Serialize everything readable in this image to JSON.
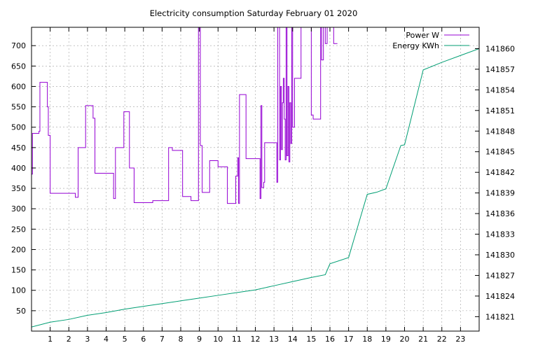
{
  "chart_data": {
    "type": "line",
    "title": "Electricity consumption Saturday February 01 2020",
    "xlabel": "",
    "ylabel": "",
    "y2label": "",
    "grid": true,
    "legend_position": "top-right",
    "xlim": [
      0,
      24
    ],
    "ylim": [
      0,
      745
    ],
    "y2lim": [
      141818.9,
      141863.1
    ],
    "x_ticks": [
      1,
      2,
      3,
      4,
      5,
      6,
      7,
      8,
      9,
      10,
      11,
      12,
      13,
      14,
      15,
      16,
      17,
      18,
      19,
      20,
      21,
      22,
      23
    ],
    "y_ticks": [
      50,
      100,
      150,
      200,
      250,
      300,
      350,
      400,
      450,
      500,
      550,
      600,
      650,
      700
    ],
    "y2_ticks": [
      141821,
      141824,
      141827,
      141830,
      141833,
      141836,
      141839,
      141842,
      141845,
      141848,
      141851,
      141854,
      141857,
      141860
    ],
    "series": [
      {
        "name": "Power W",
        "axis": "left",
        "color": "#9400d3",
        "step": true,
        "x": [
          0,
          0.05,
          0.1,
          0.4,
          0.45,
          0.5,
          0.85,
          0.9,
          0.95,
          1.0,
          1.5,
          2.35,
          2.4,
          2.5,
          2.9,
          3.0,
          3.3,
          3.4,
          4.05,
          4.1,
          4.25,
          4.3,
          4.4,
          4.5,
          4.95,
          5.15,
          5.25,
          5.5,
          6.5,
          6.9,
          7.35,
          7.4,
          7.55,
          7.6,
          8.1,
          8.45,
          8.5,
          8.55,
          8.95,
          9.05,
          9.15,
          9.55,
          10.0,
          10.5,
          10.55,
          10.95,
          11.0,
          11.05,
          11.1,
          11.15,
          11.5,
          12.15,
          12.25,
          12.3,
          12.35,
          12.45,
          12.5,
          12.6,
          12.7,
          13.15,
          13.2,
          13.3,
          13.35,
          13.4,
          13.45,
          13.5,
          13.55,
          13.6,
          13.65,
          13.7,
          13.75,
          13.8,
          13.85,
          13.9,
          13.95,
          14.0,
          14.1,
          14.35,
          14.45,
          15.0,
          15.1,
          15.5,
          15.55,
          15.65,
          15.75,
          15.85,
          16.2,
          16.35
        ],
        "values": [
          385,
          485,
          485,
          490,
          610,
          610,
          550,
          480,
          480,
          338,
          338,
          328,
          328,
          450,
          553,
          553,
          522,
          387,
          387,
          387,
          387,
          387,
          325,
          450,
          538,
          538,
          400,
          315,
          320,
          320,
          450,
          450,
          443,
          443,
          330,
          330,
          330,
          320,
          745,
          455,
          340,
          418,
          403,
          313,
          313,
          380,
          380,
          425,
          313,
          580,
          423,
          423,
          325,
          553,
          352,
          365,
          462,
          462,
          462,
          365,
          745,
          420,
          600,
          445,
          560,
          620,
          520,
          420,
          745,
          430,
          600,
          415,
          560,
          460,
          745,
          500,
          620,
          620,
          745,
          530,
          520,
          745,
          665,
          745,
          705,
          745,
          705,
          705
        ]
      },
      {
        "name": "Energy KWh",
        "axis": "right",
        "color": "#009e73",
        "x": [
          0,
          1,
          2,
          3,
          4,
          5,
          6,
          7,
          8,
          9,
          10,
          11,
          12,
          13,
          14,
          15,
          15.75,
          16.0,
          17.0,
          18.0,
          18.5,
          19.0,
          19.8,
          20.0,
          21.0,
          22.0,
          23.0,
          24.0
        ],
        "values": [
          141819.5,
          141820.2,
          141820.6,
          141821.2,
          141821.6,
          141822.1,
          141822.5,
          141822.9,
          141823.3,
          141823.7,
          141824.1,
          141824.5,
          141824.9,
          141825.5,
          141826.1,
          141826.7,
          141827.1,
          141828.7,
          141829.6,
          141838.8,
          141839.1,
          141839.6,
          141845.9,
          141846.0,
          141856.9,
          141858.0,
          141859.0,
          141860.0
        ]
      }
    ]
  }
}
